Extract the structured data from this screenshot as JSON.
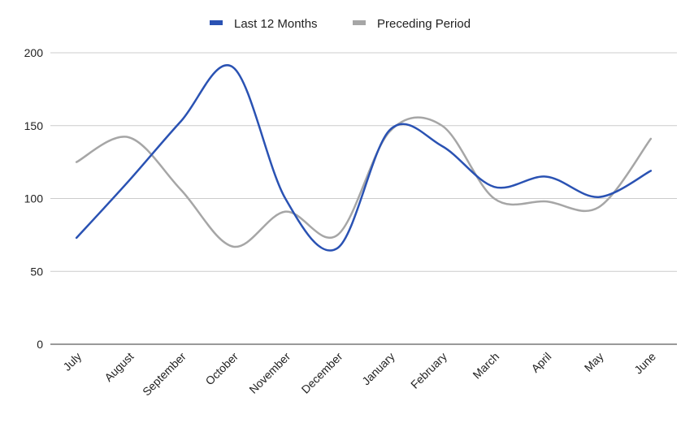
{
  "colors": {
    "series_0": "#2a52b3",
    "series_1": "#a6a6a6",
    "grid": "#cccccc",
    "axis": "#333333",
    "text": "#222222"
  },
  "chart_data": {
    "type": "line",
    "smooth": true,
    "categories": [
      "July",
      "August",
      "September",
      "October",
      "November",
      "December",
      "January",
      "February",
      "March",
      "April",
      "May",
      "June"
    ],
    "series": [
      {
        "name": "Last 12 Months",
        "values": [
          73,
          112,
          153,
          190,
          100,
          66,
          147,
          136,
          108,
          115,
          101,
          119
        ]
      },
      {
        "name": "Preceding Period",
        "values": [
          125,
          142,
          106,
          67,
          91,
          75,
          146,
          150,
          100,
          98,
          94,
          141
        ]
      }
    ],
    "ylim": [
      0,
      200
    ],
    "yticks": [
      0,
      50,
      100,
      150,
      200
    ],
    "grid": true,
    "legend": "top-center",
    "title": "",
    "xlabel": "",
    "ylabel": ""
  }
}
